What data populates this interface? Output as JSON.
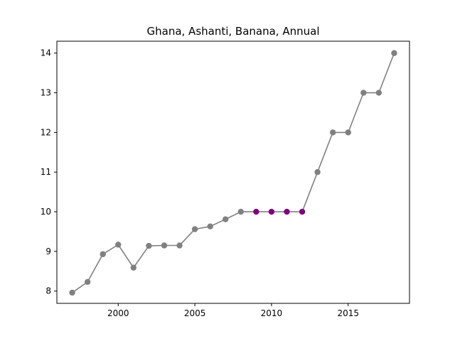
{
  "chart_data": {
    "type": "line",
    "title": "Ghana, Ashanti, Banana, Annual",
    "xlabel": "",
    "ylabel": "",
    "xlim": [
      1996.0,
      2019.0
    ],
    "ylim": [
      7.69,
      14.3
    ],
    "x_ticks": [
      2000,
      2005,
      2010,
      2015
    ],
    "x_tick_labels": [
      "2000",
      "2005",
      "2010",
      "2015"
    ],
    "y_ticks": [
      8,
      9,
      10,
      11,
      12,
      13,
      14
    ],
    "y_tick_labels": [
      "8",
      "9",
      "10",
      "11",
      "12",
      "13",
      "14"
    ],
    "grid": false,
    "series": [
      {
        "x": [
          1997,
          1998,
          1999,
          2000,
          2001,
          2002,
          2003,
          2004,
          2005,
          2006,
          2007,
          2008,
          2009,
          2010,
          2011,
          2012,
          2013,
          2014,
          2015,
          2016,
          2017,
          2018
        ],
        "values": [
          7.96,
          8.23,
          8.93,
          9.17,
          8.59,
          9.14,
          9.15,
          9.15,
          9.56,
          9.63,
          9.81,
          10.0,
          10.0,
          10.0,
          10.0,
          10.0,
          11.0,
          12.0,
          12.0,
          13.0,
          13.0,
          14.0
        ],
        "highlight": [
          false,
          false,
          false,
          false,
          false,
          false,
          false,
          false,
          false,
          false,
          false,
          false,
          true,
          true,
          true,
          true,
          false,
          false,
          false,
          false,
          false,
          false
        ],
        "line_color": "#808080",
        "marker_color": "#808080",
        "highlight_color": "#800080"
      }
    ]
  }
}
